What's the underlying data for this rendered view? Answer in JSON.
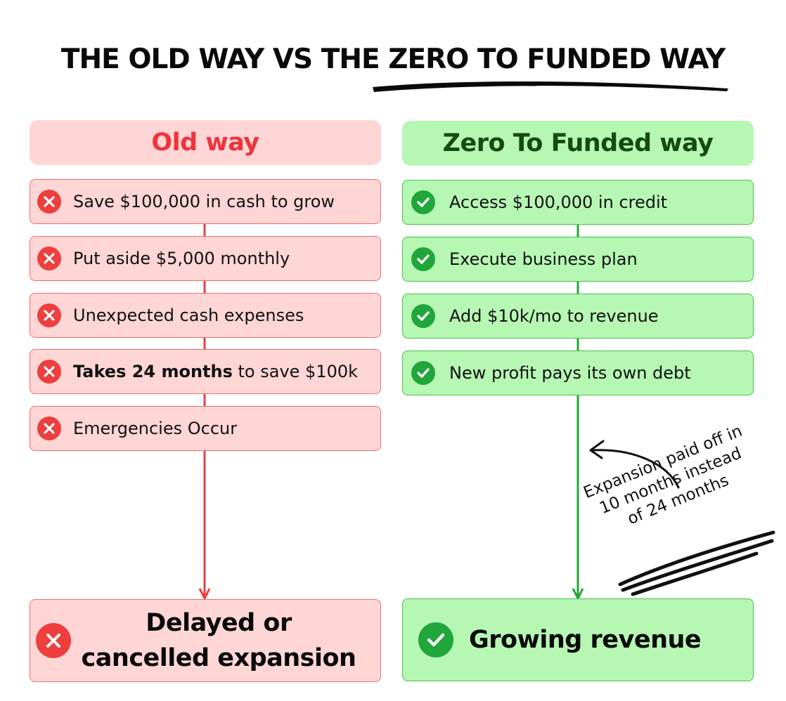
{
  "title": {
    "plain": "THE OLD WAY VS THE ",
    "highlight": "ZERO TO FUNDED WAY"
  },
  "old_way": {
    "header": "Old way",
    "steps": [
      {
        "text": "Save $100,000 in cash to grow"
      },
      {
        "text": "Put aside $5,000 monthly"
      },
      {
        "text": "Unexpected cash expenses"
      },
      {
        "bold": "Takes 24 months",
        "text": " to save $100k"
      },
      {
        "text": "Emergencies Occur"
      }
    ],
    "outcome": "Delayed or cancelled expansion",
    "icon": "x-circle-icon",
    "accent": "#ee3e3e"
  },
  "new_way": {
    "header": "Zero To Funded way",
    "steps": [
      {
        "text": "Access $100,000 in credit"
      },
      {
        "text": "Execute business plan"
      },
      {
        "text": "Add $10k/mo to revenue"
      },
      {
        "text": "New profit pays its own debt"
      }
    ],
    "outcome": "Growing revenue",
    "icon": "check-circle-icon",
    "accent": "#20a63a"
  },
  "annotation": {
    "lines": [
      "Expansion paid off in",
      "10 months instead",
      "of 24 months"
    ]
  }
}
